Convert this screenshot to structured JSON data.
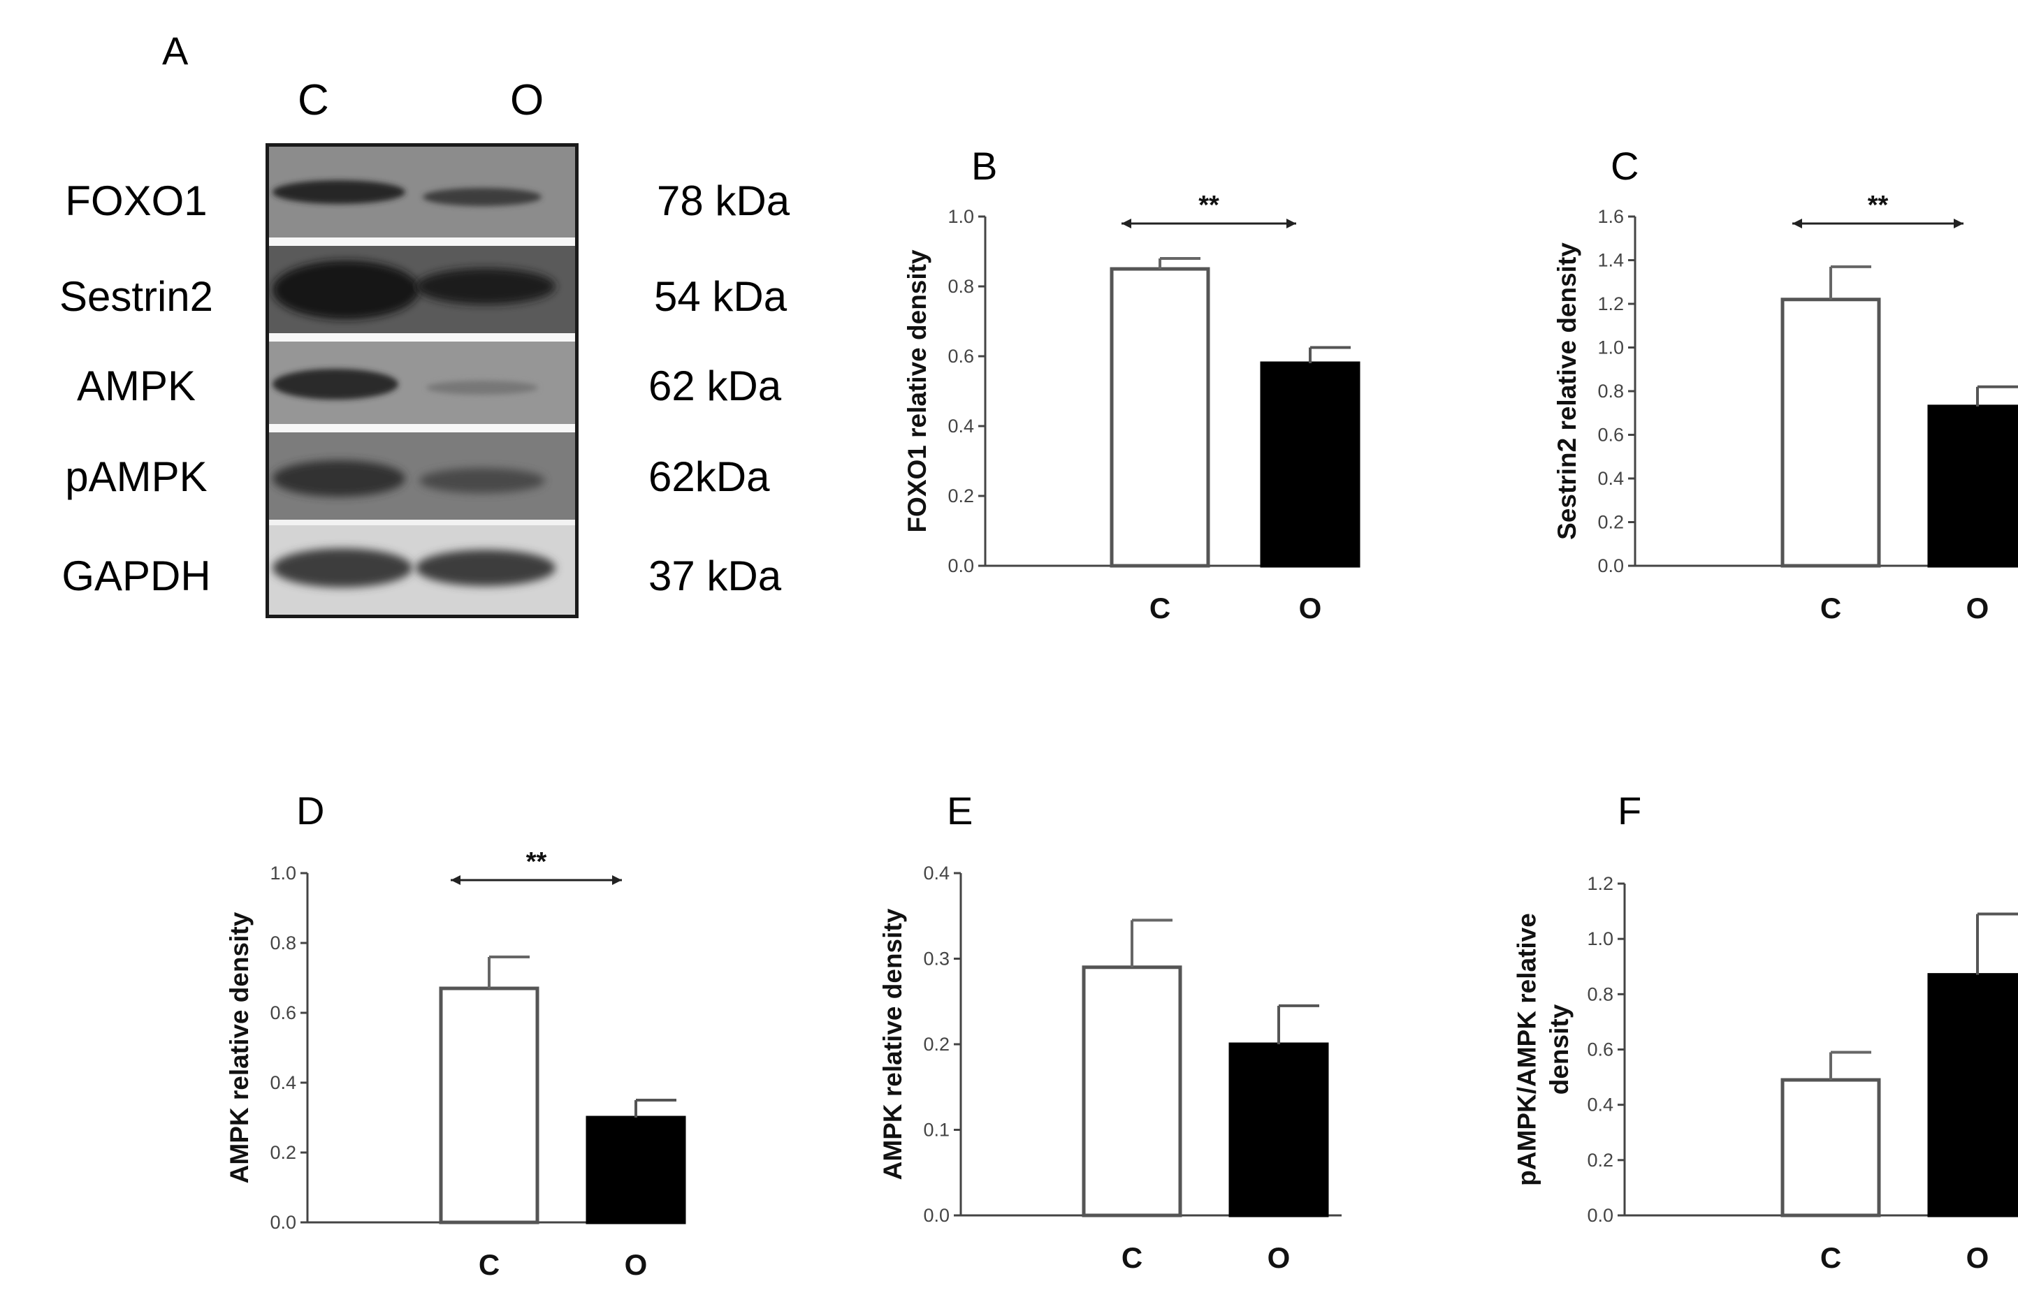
{
  "blot": {
    "panel_letter": "A",
    "columns": [
      "C",
      "O"
    ],
    "rows": [
      {
        "protein": "FOXO1",
        "mw": "78 kDa"
      },
      {
        "protein": "Sestrin2",
        "mw": "54 kDa"
      },
      {
        "protein": "AMPK",
        "mw": "62 kDa"
      },
      {
        "protein": "pAMPK",
        "mw": "62kDa"
      },
      {
        "protein": "GAPDH",
        "mw": "37 kDa"
      }
    ]
  },
  "chart_data": [
    {
      "panel": "B",
      "type": "bar",
      "categories": [
        "C",
        "O"
      ],
      "values": [
        0.85,
        0.58
      ],
      "errors": [
        0.03,
        0.045
      ],
      "bar_colors": [
        "#ffffff",
        "#000000"
      ],
      "ylabel": "FOXO1 relative density",
      "ylim": [
        0,
        1.0
      ],
      "yticks": [
        "0.0",
        "0.2",
        "0.4",
        "0.6",
        "0.8",
        "1.0"
      ],
      "significance": "**"
    },
    {
      "panel": "C",
      "type": "bar",
      "categories": [
        "C",
        "O"
      ],
      "values": [
        1.22,
        0.73
      ],
      "errors": [
        0.15,
        0.09
      ],
      "bar_colors": [
        "#ffffff",
        "#000000"
      ],
      "ylabel": "Sestrin2 relative density",
      "ylim": [
        0,
        1.6
      ],
      "yticks": [
        "0.0",
        "0.2",
        "0.4",
        "0.6",
        "0.8",
        "1.0",
        "1.2",
        "1.4",
        "1.6"
      ],
      "significance": "**"
    },
    {
      "panel": "D",
      "type": "bar",
      "categories": [
        "C",
        "O"
      ],
      "values": [
        0.67,
        0.3
      ],
      "errors": [
        0.09,
        0.05
      ],
      "bar_colors": [
        "#ffffff",
        "#000000"
      ],
      "ylabel": "AMPK relative density",
      "ylim": [
        0,
        1.0
      ],
      "yticks": [
        "0.0",
        "0.2",
        "0.4",
        "0.6",
        "0.8",
        "1.0"
      ],
      "significance": "**"
    },
    {
      "panel": "E",
      "type": "bar",
      "categories": [
        "C",
        "O"
      ],
      "values": [
        0.29,
        0.2
      ],
      "errors": [
        0.055,
        0.045
      ],
      "bar_colors": [
        "#ffffff",
        "#000000"
      ],
      "ylabel": "AMPK relative density",
      "ylim": [
        0,
        0.4
      ],
      "yticks": [
        "0.0",
        "0.1",
        "0.2",
        "0.3",
        "0.4"
      ],
      "significance": ""
    },
    {
      "panel": "F",
      "type": "bar",
      "categories": [
        "C",
        "O"
      ],
      "values": [
        0.49,
        0.87
      ],
      "errors": [
        0.1,
        0.22
      ],
      "bar_colors": [
        "#ffffff",
        "#000000"
      ],
      "ylabel": "pAMPK/AMPK relative density",
      "ylabel_lines": [
        "pAMPK/AMPK relative",
        "density"
      ],
      "ylim": [
        0,
        1.2
      ],
      "yticks": [
        "0.0",
        "0.2",
        "0.4",
        "0.6",
        "0.8",
        "1.0",
        "1.2"
      ],
      "significance": ""
    }
  ]
}
